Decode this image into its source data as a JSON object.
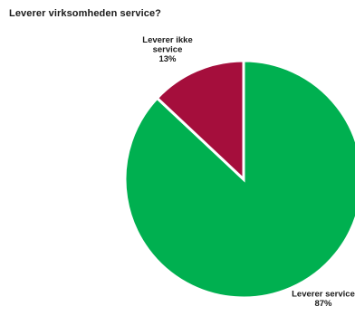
{
  "chart_data": {
    "type": "pie",
    "title": "Leverer virksomheden service?",
    "slices": [
      {
        "label_lines": [
          "Leverer service"
        ],
        "value": 87,
        "value_label": "87%",
        "color": "#00b050"
      },
      {
        "label_lines": [
          "Leverer ikke",
          "service"
        ],
        "value": 13,
        "value_label": "13%",
        "color": "#a50e3c"
      }
    ],
    "start_angle": "12 o'clock",
    "direction": "clockwise",
    "slice_separator_color": "#ffffff",
    "legend": "none"
  }
}
